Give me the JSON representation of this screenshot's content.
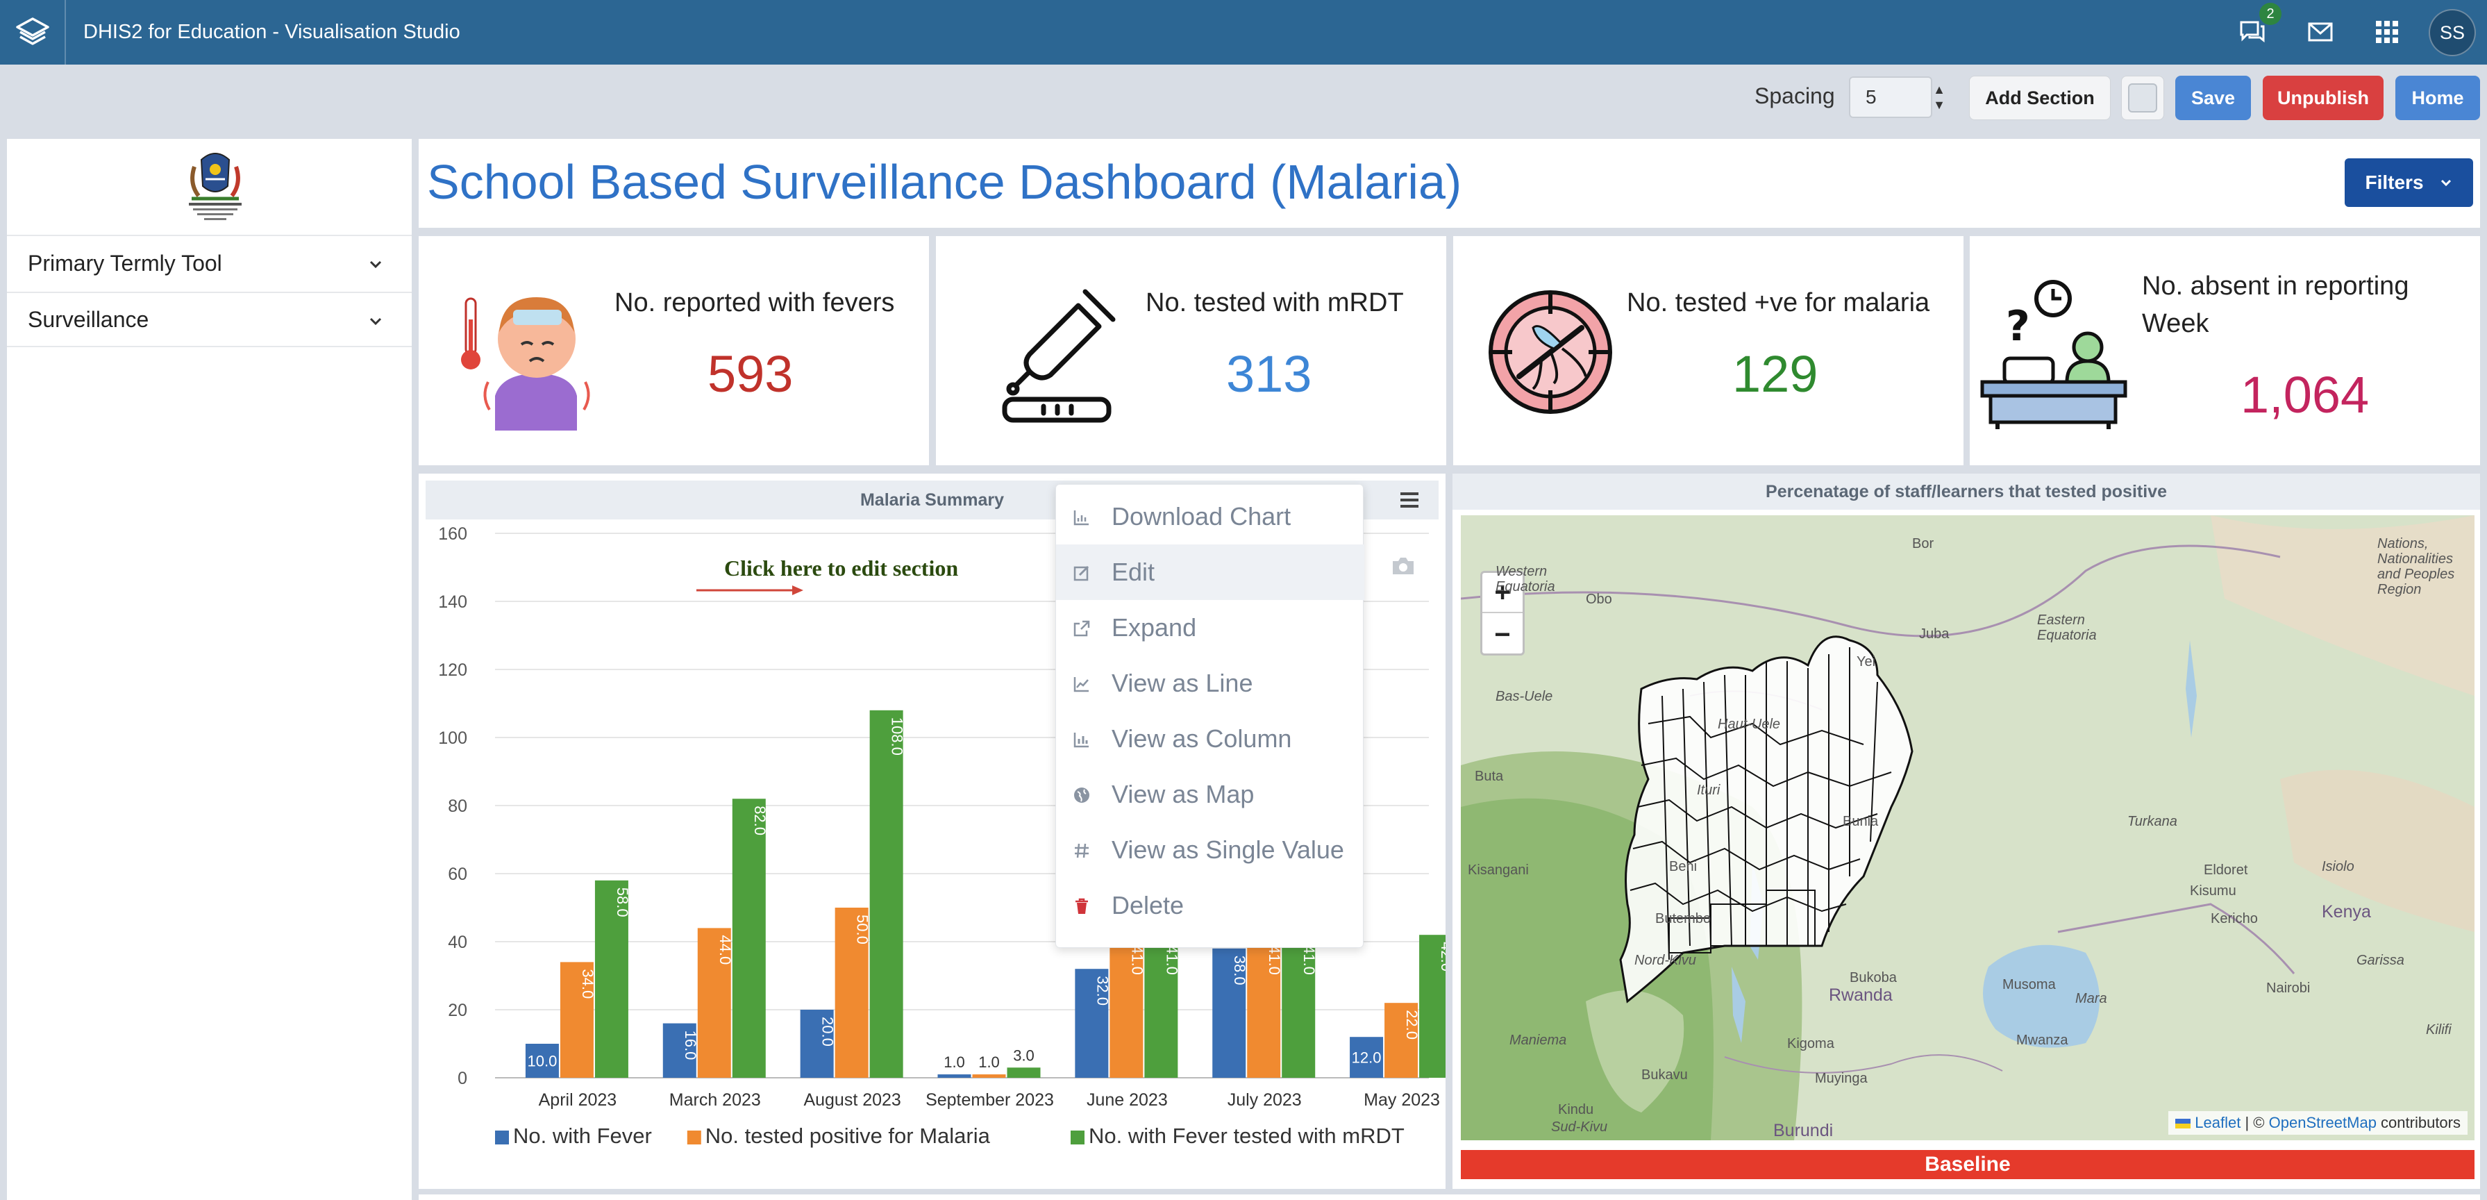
{
  "topbar": {
    "title": "DHIS2 for Education - Visualisation Studio",
    "message_badge": "2",
    "avatar_initials": "SS"
  },
  "toolbar": {
    "spacing_label": "Spacing",
    "spacing_value": "5",
    "add_section_label": "Add Section",
    "save_label": "Save",
    "unpublish_label": "Unpublish",
    "home_label": "Home"
  },
  "sidebar": {
    "items": [
      {
        "label": "Primary Termly Tool"
      },
      {
        "label": "Surveillance"
      }
    ]
  },
  "header": {
    "title": "School Based Surveillance Dashboard (Malaria)",
    "filters_label": "Filters"
  },
  "cards": [
    {
      "label": "No. reported with fevers",
      "value": "593",
      "color": "#c0322b",
      "icon": "sick-child-icon"
    },
    {
      "label": "No. tested with mRDT",
      "value": "313",
      "color": "#3d86d6",
      "icon": "dropper-test-icon"
    },
    {
      "label": "No. tested +ve for malaria",
      "value": "129",
      "color": "#2f8a2f",
      "icon": "mosquito-target-icon"
    },
    {
      "label": "No. absent in reporting Week",
      "value": "1,064",
      "color": "#c3245e",
      "icon": "absent-desk-icon"
    }
  ],
  "chart_section": {
    "title": "Malaria Summary",
    "edit_hint": "Click here to edit section"
  },
  "context_menu": {
    "items": [
      {
        "label": "Download Chart",
        "icon": "chart-icon"
      },
      {
        "label": "Edit",
        "icon": "edit-icon"
      },
      {
        "label": "Expand",
        "icon": "expand-icon"
      },
      {
        "label": "View as Line",
        "icon": "line-chart-icon"
      },
      {
        "label": "View as Column",
        "icon": "column-chart-icon"
      },
      {
        "label": "View as Map",
        "icon": "globe-icon"
      },
      {
        "label": "View as Single Value",
        "icon": "hash-icon"
      },
      {
        "label": "Delete",
        "icon": "trash-icon"
      }
    ]
  },
  "chart_data": {
    "type": "bar",
    "categories": [
      "April 2023",
      "March 2023",
      "August 2023",
      "September 2023",
      "June 2023",
      "July 2023",
      "May 2023"
    ],
    "series": [
      {
        "name": "No. with Fever",
        "color": "#3a6fb3",
        "values": [
          10,
          16,
          20,
          1,
          32,
          38,
          12
        ]
      },
      {
        "name": "No. tested positive for Malaria",
        "color": "#f08a30",
        "values": [
          34,
          44,
          50,
          1,
          41,
          41,
          22
        ]
      },
      {
        "name": "No. with Fever tested with mRDT",
        "color": "#4e9f3d",
        "values": [
          58,
          82,
          108,
          3,
          41,
          41,
          42
        ]
      }
    ],
    "ylim": [
      0,
      160
    ],
    "yticks": [
      0,
      20,
      40,
      60,
      80,
      100,
      120,
      140,
      160
    ],
    "grid": true,
    "legend": "bottom"
  },
  "map_section": {
    "title": "Percenatage of staff/learners that tested positive",
    "zoom_in": "+",
    "zoom_out": "−",
    "attribution_leaflet": "Leaflet",
    "attribution_sep": " | © ",
    "attribution_osm": "OpenStreetMap",
    "attribution_tail": " contributors",
    "baseline_label": "Baseline",
    "place_labels": [
      "Bor",
      "Western Equatoria",
      "Obo",
      "Nations, Nationalities and Peoples Region",
      "Juba",
      "Eastern Equatoria",
      "Yei",
      "Bas-Uele",
      "Haut-Uele",
      "Buta",
      "Ituri",
      "Bunia",
      "Turkana",
      "Kisangani",
      "Beni",
      "Eldoret",
      "Isiolo",
      "Kisumu",
      "Butembo",
      "Kericho",
      "Kenya",
      "Nord-Kivu",
      "Bukoba",
      "Musoma",
      "Nairobi",
      "Garissa",
      "Rwanda",
      "Mara",
      "Maniema",
      "Kigoma",
      "Mwanza",
      "Bukavu",
      "Muyinga",
      "Kindu",
      "Sud-Kivu",
      "Burundi",
      "Kilifi"
    ]
  }
}
